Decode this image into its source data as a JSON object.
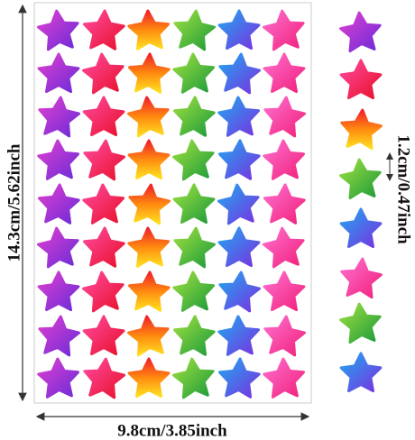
{
  "labels": {
    "height": "14.3cm/5.62inch",
    "width": "9.8cm/3.85inch",
    "star_size": "1.2cm/0.47inch"
  }
}
